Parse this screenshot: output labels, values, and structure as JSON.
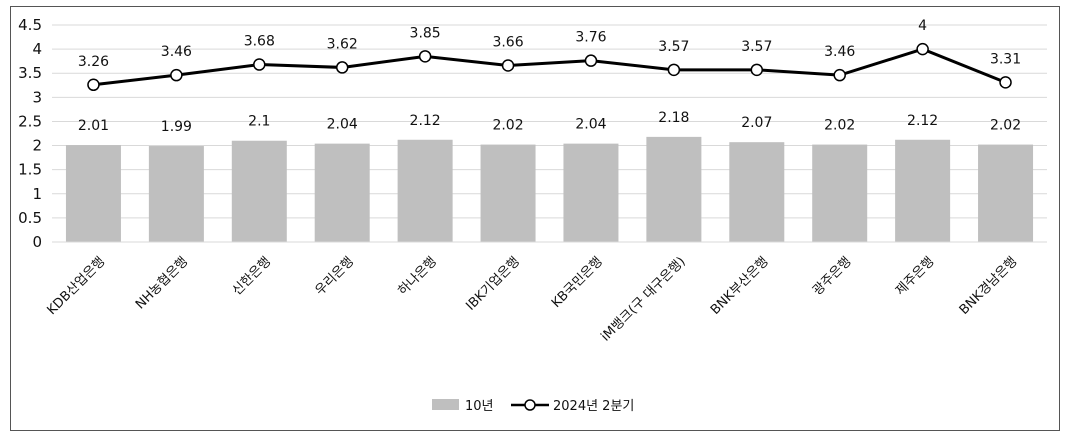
{
  "chart_data": {
    "type": "bar",
    "categories": [
      "KDB산업은행",
      "NH농협은행",
      "신한은행",
      "우리은행",
      "하나은행",
      "IBK기업은행",
      "KB국민은행",
      "iM뱅크(구 대구은행)",
      "BNK부산은행",
      "광주은행",
      "제주은행",
      "BNK경남은행"
    ],
    "series": [
      {
        "name": "10년",
        "kind": "bar",
        "color": "#bfbfbf",
        "values": [
          2.01,
          1.99,
          2.1,
          2.04,
          2.12,
          2.02,
          2.04,
          2.18,
          2.07,
          2.02,
          2.12,
          2.02
        ],
        "labels": [
          "2.01",
          "1.99",
          "2.1",
          "2.04",
          "2.12",
          "2.02",
          "2.04",
          "2.18",
          "2.07",
          "2.02",
          "2.12",
          "2.02"
        ]
      },
      {
        "name": "2024년 2분기",
        "kind": "line",
        "color": "#000000",
        "values": [
          3.26,
          3.46,
          3.68,
          3.62,
          3.85,
          3.66,
          3.76,
          3.57,
          3.57,
          3.46,
          4,
          3.31
        ],
        "labels": [
          "3.26",
          "3.46",
          "3.68",
          "3.62",
          "3.85",
          "3.66",
          "3.76",
          "3.57",
          "3.57",
          "3.46",
          "4",
          "3.31"
        ]
      }
    ],
    "title": "",
    "xlabel": "",
    "ylabel": "",
    "ylim": [
      0,
      4.5
    ],
    "yticks": [
      "0",
      "0.5",
      "1",
      "1.5",
      "2",
      "2.5",
      "3",
      "3.5",
      "4",
      "4.5"
    ],
    "grid": true,
    "legend": "bottom-center"
  }
}
